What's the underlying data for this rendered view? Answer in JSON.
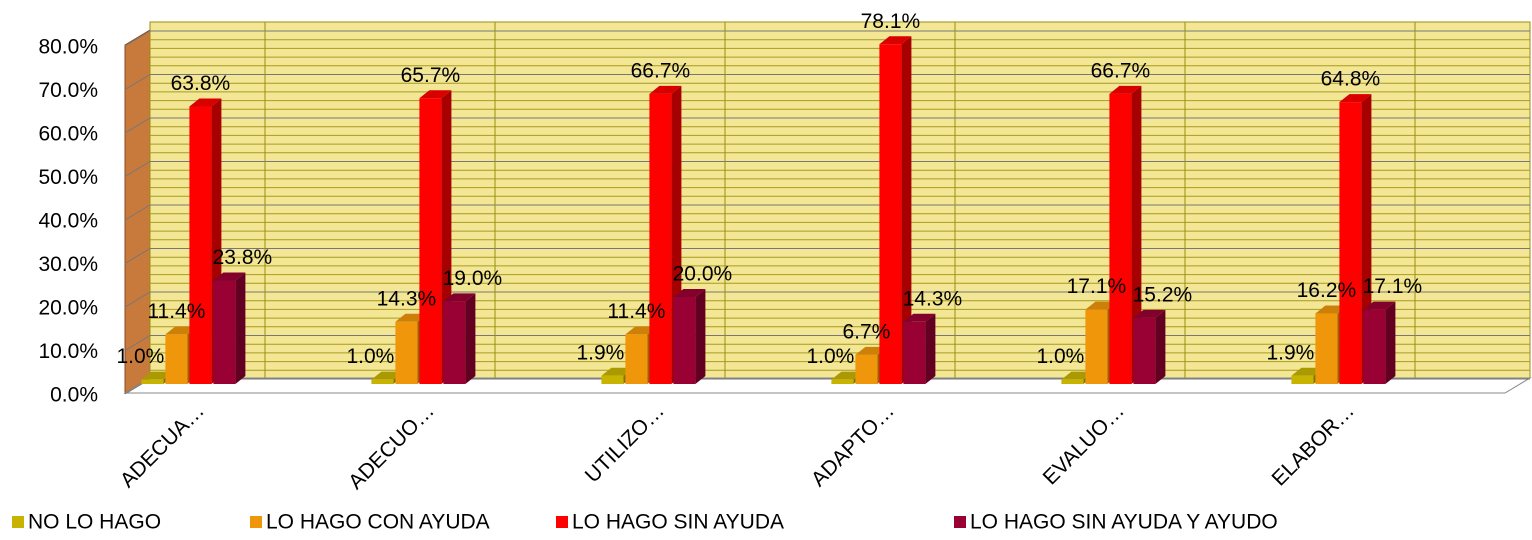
{
  "chart_data": {
    "type": "bar3d",
    "categories": [
      "ADECUA…",
      "ADECUO…",
      "UTILIZO…",
      "ADAPTO…",
      "EVALUO…",
      "ELABOR…"
    ],
    "series": [
      {
        "name": "NO LO HAGO",
        "color": "#c8b400",
        "values": [
          1.0,
          1.0,
          1.9,
          1.0,
          1.0,
          1.9
        ],
        "value_labels": [
          "1.0%",
          "1.0%",
          "1.9%",
          "1.0%",
          "1.0%",
          "1.9%"
        ]
      },
      {
        "name": "LO HAGO CON AYUDA",
        "color": "#f0960a",
        "values": [
          11.4,
          14.3,
          11.4,
          6.7,
          17.1,
          16.2
        ],
        "value_labels": [
          "11.4%",
          "14.3%",
          "11.4%",
          "6.7%",
          "17.1%",
          "16.2%"
        ]
      },
      {
        "name": "LO HAGO SIN AYUDA",
        "color": "#ff0000",
        "values": [
          63.8,
          65.7,
          66.7,
          78.1,
          66.7,
          64.8
        ],
        "value_labels": [
          "63.8%",
          "65.7%",
          "66.7%",
          "78.1%",
          "66.7%",
          "64.8%"
        ]
      },
      {
        "name": "LO HAGO SIN AYUDA Y AYUDO",
        "color": "#990033",
        "values": [
          23.8,
          19.0,
          20.0,
          14.3,
          15.2,
          17.1
        ],
        "value_labels": [
          "23.8%",
          "19.0%",
          "20.0%",
          "14.3%",
          "15.2%",
          "17.1%"
        ]
      }
    ],
    "ylim": [
      0,
      80
    ],
    "yticks": [
      {
        "value": 0,
        "label": "0.0%"
      },
      {
        "value": 10,
        "label": "10.0%"
      },
      {
        "value": 20,
        "label": "20.0%"
      },
      {
        "value": 30,
        "label": "30.0%"
      },
      {
        "value": 40,
        "label": "40.0%"
      },
      {
        "value": 50,
        "label": "50.0%"
      },
      {
        "value": 60,
        "label": "60.0%"
      },
      {
        "value": 70,
        "label": "70.0%"
      },
      {
        "value": 80,
        "label": "80.0%"
      }
    ],
    "grid": true,
    "legend": "bottom"
  }
}
